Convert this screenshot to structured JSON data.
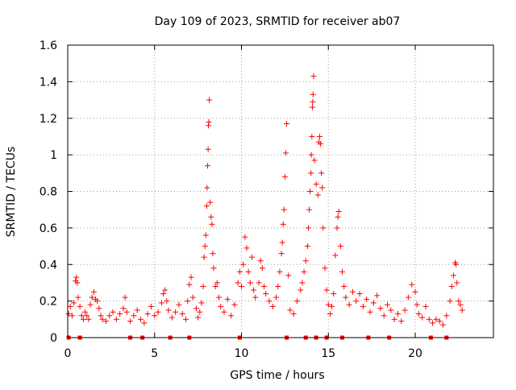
{
  "chart_data": {
    "type": "scatter",
    "title": "Day 109 of 2023, SRMTID for receiver ab07",
    "xlabel": "GPS time / hours",
    "ylabel": "SRMTID / TECUs",
    "xlim": [
      0,
      24.5
    ],
    "ylim": [
      0,
      1.6
    ],
    "x_ticks": [
      0,
      5,
      10,
      15,
      20
    ],
    "x_tick_labels": [
      "0",
      "5",
      "10",
      "15",
      "20"
    ],
    "y_ticks": [
      0,
      0.2,
      0.4,
      0.6,
      0.8,
      1.0,
      1.2,
      1.4,
      1.6
    ],
    "y_tick_labels": [
      "0",
      "0.2",
      "0.4",
      "0.6",
      "0.8",
      "1",
      "1.2",
      "1.4",
      "1.6"
    ],
    "grid": true,
    "marker": "+",
    "color": "#ff0000",
    "series": [
      {
        "name": "SRMTID",
        "points": [
          [
            0.05,
            0.13
          ],
          [
            0.15,
            0.17
          ],
          [
            0.25,
            0.12
          ],
          [
            0.35,
            0.19
          ],
          [
            0.45,
            0.31
          ],
          [
            0.5,
            0.33
          ],
          [
            0.55,
            0.3
          ],
          [
            0.6,
            0.22
          ],
          [
            0.7,
            0.17
          ],
          [
            0.8,
            0.12
          ],
          [
            0.9,
            0.1
          ],
          [
            1.0,
            0.14
          ],
          [
            1.1,
            0.12
          ],
          [
            1.2,
            0.1
          ],
          [
            1.3,
            0.18
          ],
          [
            1.4,
            0.22
          ],
          [
            1.5,
            0.25
          ],
          [
            1.6,
            0.21
          ],
          [
            1.7,
            0.2
          ],
          [
            1.8,
            0.16
          ],
          [
            1.9,
            0.12
          ],
          [
            2.0,
            0.1
          ],
          [
            2.2,
            0.09
          ],
          [
            2.4,
            0.12
          ],
          [
            2.6,
            0.14
          ],
          [
            2.8,
            0.1
          ],
          [
            3.0,
            0.13
          ],
          [
            3.2,
            0.16
          ],
          [
            3.3,
            0.22
          ],
          [
            3.4,
            0.14
          ],
          [
            3.6,
            0.09
          ],
          [
            3.8,
            0.12
          ],
          [
            4.0,
            0.15
          ],
          [
            4.2,
            0.1
          ],
          [
            4.4,
            0.08
          ],
          [
            4.6,
            0.13
          ],
          [
            4.8,
            0.17
          ],
          [
            5.0,
            0.12
          ],
          [
            5.2,
            0.14
          ],
          [
            5.4,
            0.19
          ],
          [
            5.5,
            0.24
          ],
          [
            5.6,
            0.26
          ],
          [
            5.7,
            0.2
          ],
          [
            5.8,
            0.15
          ],
          [
            6.0,
            0.11
          ],
          [
            6.2,
            0.14
          ],
          [
            6.4,
            0.18
          ],
          [
            6.6,
            0.13
          ],
          [
            6.8,
            0.1
          ],
          [
            6.9,
            0.2
          ],
          [
            7.0,
            0.29
          ],
          [
            7.1,
            0.33
          ],
          [
            7.2,
            0.22
          ],
          [
            7.4,
            0.16
          ],
          [
            7.5,
            0.11
          ],
          [
            7.6,
            0.14
          ],
          [
            7.7,
            0.19
          ],
          [
            7.8,
            0.28
          ],
          [
            7.85,
            0.44
          ],
          [
            7.9,
            0.5
          ],
          [
            7.95,
            0.56
          ],
          [
            8.0,
            0.72
          ],
          [
            8.02,
            0.82
          ],
          [
            8.05,
            0.94
          ],
          [
            8.08,
            1.03
          ],
          [
            8.1,
            1.16
          ],
          [
            8.12,
            1.18
          ],
          [
            8.15,
            1.3
          ],
          [
            8.2,
            0.74
          ],
          [
            8.25,
            0.66
          ],
          [
            8.3,
            0.62
          ],
          [
            8.35,
            0.46
          ],
          [
            8.4,
            0.38
          ],
          [
            8.5,
            0.28
          ],
          [
            8.6,
            0.3
          ],
          [
            8.7,
            0.22
          ],
          [
            8.8,
            0.17
          ],
          [
            9.0,
            0.14
          ],
          [
            9.2,
            0.21
          ],
          [
            9.4,
            0.12
          ],
          [
            9.6,
            0.18
          ],
          [
            9.8,
            0.3
          ],
          [
            9.9,
            0.36
          ],
          [
            10.0,
            0.28
          ],
          [
            10.1,
            0.4
          ],
          [
            10.2,
            0.55
          ],
          [
            10.3,
            0.49
          ],
          [
            10.4,
            0.36
          ],
          [
            10.5,
            0.3
          ],
          [
            10.6,
            0.44
          ],
          [
            10.7,
            0.26
          ],
          [
            10.8,
            0.22
          ],
          [
            11.0,
            0.3
          ],
          [
            11.1,
            0.42
          ],
          [
            11.2,
            0.38
          ],
          [
            11.3,
            0.28
          ],
          [
            11.4,
            0.24
          ],
          [
            11.6,
            0.2
          ],
          [
            11.8,
            0.17
          ],
          [
            12.0,
            0.22
          ],
          [
            12.1,
            0.28
          ],
          [
            12.2,
            0.36
          ],
          [
            12.3,
            0.46
          ],
          [
            12.35,
            0.52
          ],
          [
            12.4,
            0.62
          ],
          [
            12.45,
            0.7
          ],
          [
            12.5,
            0.88
          ],
          [
            12.55,
            1.01
          ],
          [
            12.6,
            1.17
          ],
          [
            12.7,
            0.34
          ],
          [
            12.8,
            0.15
          ],
          [
            13.0,
            0.13
          ],
          [
            13.2,
            0.2
          ],
          [
            13.4,
            0.26
          ],
          [
            13.5,
            0.3
          ],
          [
            13.6,
            0.36
          ],
          [
            13.7,
            0.42
          ],
          [
            13.8,
            0.5
          ],
          [
            13.85,
            0.6
          ],
          [
            13.9,
            0.7
          ],
          [
            13.95,
            0.8
          ],
          [
            14.0,
            0.9
          ],
          [
            14.02,
            1.0
          ],
          [
            14.05,
            1.1
          ],
          [
            14.08,
            1.26
          ],
          [
            14.1,
            1.29
          ],
          [
            14.12,
            1.33
          ],
          [
            14.15,
            1.43
          ],
          [
            14.2,
            0.97
          ],
          [
            14.3,
            0.84
          ],
          [
            14.4,
            0.78
          ],
          [
            14.45,
            1.07
          ],
          [
            14.5,
            1.1
          ],
          [
            14.55,
            1.06
          ],
          [
            14.6,
            0.9
          ],
          [
            14.65,
            0.82
          ],
          [
            14.7,
            0.6
          ],
          [
            14.8,
            0.38
          ],
          [
            14.9,
            0.26
          ],
          [
            15.0,
            0.18
          ],
          [
            15.1,
            0.13
          ],
          [
            15.2,
            0.17
          ],
          [
            15.3,
            0.24
          ],
          [
            15.4,
            0.45
          ],
          [
            15.5,
            0.6
          ],
          [
            15.55,
            0.66
          ],
          [
            15.6,
            0.69
          ],
          [
            15.7,
            0.5
          ],
          [
            15.8,
            0.36
          ],
          [
            15.9,
            0.28
          ],
          [
            16.0,
            0.22
          ],
          [
            16.2,
            0.18
          ],
          [
            16.4,
            0.25
          ],
          [
            16.6,
            0.2
          ],
          [
            16.8,
            0.24
          ],
          [
            17.0,
            0.17
          ],
          [
            17.2,
            0.21
          ],
          [
            17.4,
            0.14
          ],
          [
            17.6,
            0.19
          ],
          [
            17.8,
            0.23
          ],
          [
            18.0,
            0.16
          ],
          [
            18.2,
            0.12
          ],
          [
            18.4,
            0.18
          ],
          [
            18.6,
            0.15
          ],
          [
            18.8,
            0.1
          ],
          [
            19.0,
            0.13
          ],
          [
            19.2,
            0.09
          ],
          [
            19.4,
            0.15
          ],
          [
            19.6,
            0.22
          ],
          [
            19.8,
            0.29
          ],
          [
            20.0,
            0.25
          ],
          [
            20.1,
            0.18
          ],
          [
            20.2,
            0.13
          ],
          [
            20.4,
            0.11
          ],
          [
            20.6,
            0.17
          ],
          [
            20.8,
            0.1
          ],
          [
            21.0,
            0.08
          ],
          [
            21.2,
            0.1
          ],
          [
            21.4,
            0.09
          ],
          [
            21.6,
            0.07
          ],
          [
            21.8,
            0.12
          ],
          [
            22.0,
            0.2
          ],
          [
            22.1,
            0.28
          ],
          [
            22.2,
            0.34
          ],
          [
            22.3,
            0.41
          ],
          [
            22.35,
            0.4
          ],
          [
            22.4,
            0.3
          ],
          [
            22.5,
            0.2
          ],
          [
            22.6,
            0.18
          ],
          [
            22.7,
            0.15
          ]
        ]
      }
    ],
    "baseline_points_x": [
      0.05,
      0.7,
      3.6,
      4.3,
      5.9,
      7.0,
      9.9,
      12.6,
      13.7,
      14.3,
      14.9,
      15.8,
      17.3,
      18.5,
      20.9,
      21.8
    ]
  }
}
